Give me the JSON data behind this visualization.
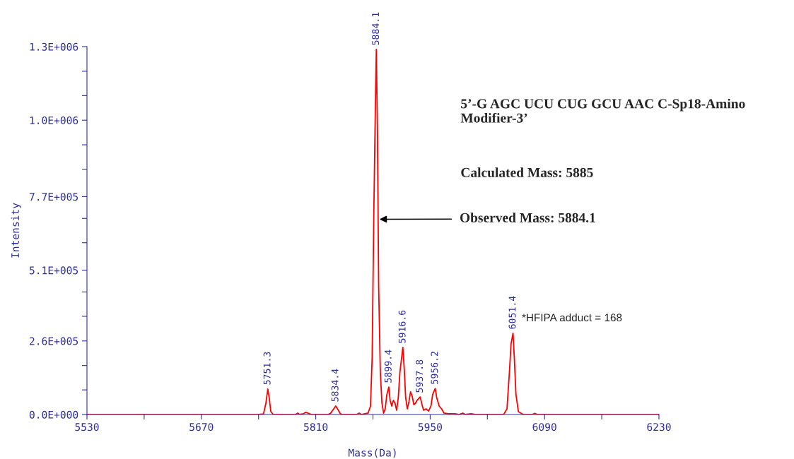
{
  "chart_data": {
    "type": "line",
    "xlabel": "Mass(Da)",
    "ylabel": "Intensity",
    "xlim": [
      5530,
      6230
    ],
    "ylim": [
      0,
      1300000
    ],
    "xticks": [
      5530,
      {
        "value": 5600,
        "label": null
      },
      5670,
      {
        "value": 5740,
        "label": null
      },
      5810,
      {
        "value": 5880,
        "label": null
      },
      5950,
      {
        "value": 6020,
        "label": null
      },
      6090,
      {
        "value": 6160,
        "label": null
      },
      6230
    ],
    "yticks": [
      {
        "value": 0,
        "label": "0.0E+000"
      },
      {
        "value": 87000,
        "label": null
      },
      {
        "value": 173000,
        "label": null
      },
      {
        "value": 260000,
        "label": "2.6E+005"
      },
      {
        "value": 347000,
        "label": null
      },
      {
        "value": 433000,
        "label": null
      },
      {
        "value": 510000,
        "label": "5.1E+005"
      },
      {
        "value": 607000,
        "label": null
      },
      {
        "value": 693000,
        "label": null
      },
      {
        "value": 770000,
        "label": "7.7E+005"
      },
      {
        "value": 867000,
        "label": null
      },
      {
        "value": 953000,
        "label": null
      },
      {
        "value": 1040000,
        "label": "1.0E+006"
      },
      {
        "value": 1127000,
        "label": null
      },
      {
        "value": 1213000,
        "label": null
      },
      {
        "value": 1300000,
        "label": "1.3E+006"
      }
    ],
    "grid": false,
    "legend": false,
    "marker": "none",
    "line_style": "solid",
    "series": [
      {
        "color": "#ff0000",
        "x": [
          5530,
          5740,
          5746,
          5749,
          5751.3,
          5753,
          5755,
          5758,
          5785,
          5788,
          5790,
          5795,
          5798,
          5802,
          5805,
          5825,
          5828,
          5832,
          5834.4,
          5837,
          5840,
          5843,
          5860,
          5863,
          5866,
          5870,
          5874,
          5877,
          5879,
          5881,
          5882.5,
          5884.1,
          5885.5,
          5887,
          5889,
          5891,
          5893,
          5895,
          5897,
          5899.4,
          5901,
          5903,
          5905,
          5907,
          5909,
          5911,
          5913,
          5916.6,
          5918.5,
          5920,
          5922,
          5924,
          5926,
          5928,
          5930,
          5932,
          5934,
          5937.8,
          5940,
          5942,
          5945,
          5948,
          5951,
          5953,
          5956.2,
          5958,
          5961,
          5964,
          5967,
          5972,
          5980,
          5985,
          5990,
          5993,
          6000,
          6005,
          6040,
          6044,
          6047,
          6049,
          6051.4,
          6053,
          6055,
          6058,
          6062,
          6065,
          6075,
          6078,
          6081,
          6230
        ],
        "values": [
          0,
          0,
          2000,
          40000,
          90000,
          60000,
          10000,
          0,
          0,
          5000,
          0,
          3000,
          8000,
          3000,
          0,
          0,
          4000,
          20000,
          30000,
          18000,
          3000,
          0,
          0,
          5000,
          0,
          3000,
          5000,
          30000,
          200000,
          700000,
          1000000,
          1290000,
          1000000,
          450000,
          150000,
          40000,
          5000,
          20000,
          70000,
          97000,
          50000,
          30000,
          50000,
          40000,
          15000,
          60000,
          150000,
          237000,
          150000,
          60000,
          20000,
          45000,
          80000,
          65000,
          35000,
          40000,
          50000,
          62000,
          35000,
          15000,
          20000,
          12000,
          30000,
          70000,
          92000,
          60000,
          30000,
          20000,
          5000,
          3000,
          3000,
          0,
          5000,
          0,
          3000,
          0,
          0,
          20000,
          150000,
          250000,
          287000,
          200000,
          70000,
          10000,
          3000,
          0,
          0,
          4000,
          0,
          0
        ]
      }
    ],
    "annotations": [
      {
        "text": "5751.3",
        "x": 5751.3,
        "y": 90000
      },
      {
        "text": "5834.4",
        "x": 5834.4,
        "y": 30000
      },
      {
        "text": "5884.1",
        "x": 5884.1,
        "y": 1290000
      },
      {
        "text": "5899.4",
        "x": 5899.4,
        "y": 97000
      },
      {
        "text": "5916.6",
        "x": 5916.6,
        "y": 237000
      },
      {
        "text": "5937.8",
        "x": 5937.8,
        "y": 62000
      },
      {
        "text": "5956.2",
        "x": 5956.2,
        "y": 92000
      },
      {
        "text": "6051.4",
        "x": 6051.4,
        "y": 287000
      },
      "5’-G AGC UCU CUG GCU AAC C-Sp18-Amino Modifier-3’",
      "Calculated Mass: 5885",
      {
        "text": "Observed Mass: 5884.1",
        "x": 5888,
        "y": 690000
      },
      "*HFIPA adduct = 168"
    ]
  }
}
